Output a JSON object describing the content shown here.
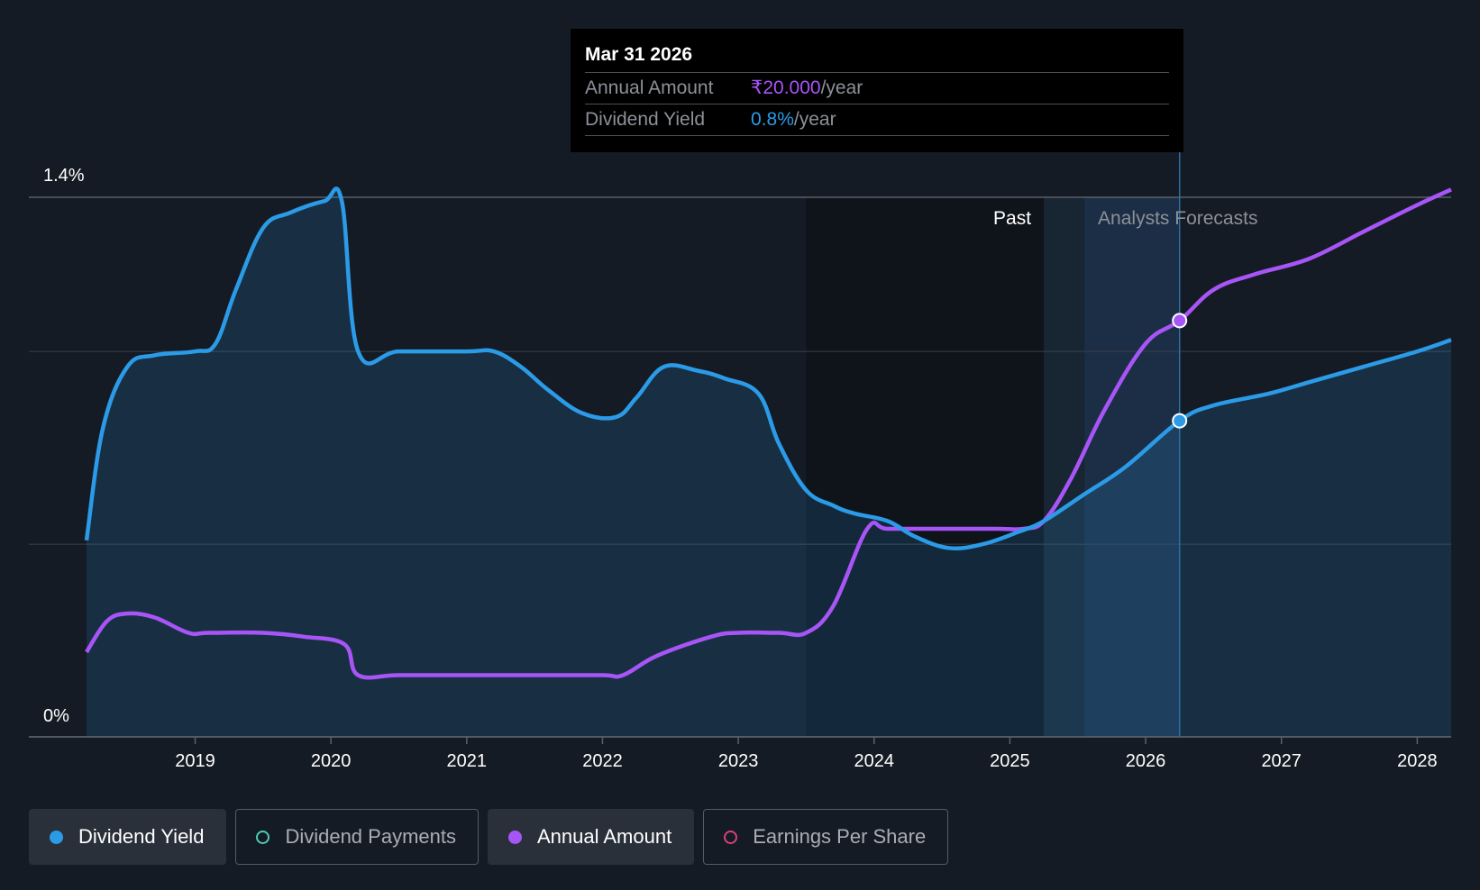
{
  "tooltip": {
    "date": "Mar 31 2026",
    "annual_amount_label": "Annual Amount",
    "annual_amount_value": "₹20.000",
    "annual_amount_unit": "/year",
    "dividend_yield_label": "Dividend Yield",
    "dividend_yield_value": "0.8%",
    "dividend_yield_unit": "/year"
  },
  "legend": [
    {
      "label": "Dividend Yield",
      "color": "#2b9be8",
      "active": true,
      "icon": "filled-dot-icon"
    },
    {
      "label": "Dividend Payments",
      "color": "#4fc9b7",
      "active": false,
      "icon": "hollow-dot-icon"
    },
    {
      "label": "Annual Amount",
      "color": "#a855f7",
      "active": true,
      "icon": "filled-dot-icon"
    },
    {
      "label": "Earnings Per Share",
      "color": "#d6417c",
      "active": false,
      "icon": "hollow-dot-icon"
    }
  ],
  "colors": {
    "background": "#151b24",
    "past_region": "#0e1219",
    "yield_line": "#2b9be8",
    "amount_line": "#a855f7",
    "grid": "#3a404a"
  },
  "chart_data": {
    "type": "line",
    "ylabel_ticks": [
      "0%",
      "1.4%"
    ],
    "ylim": [
      0,
      1.4
    ],
    "x_ticks": [
      2019,
      2020,
      2021,
      2022,
      2023,
      2024,
      2025,
      2026,
      2027,
      2028
    ],
    "xlim": [
      2018.2,
      2028.25
    ],
    "region_labels": {
      "past": "Past",
      "forecast": "Analysts Forecasts"
    },
    "past_end": 2025.25,
    "cursor_x": 2026.25,
    "series": [
      {
        "name": "Dividend Yield",
        "unit": "%",
        "points": [
          [
            2018.2,
            0.51
          ],
          [
            2018.32,
            0.8
          ],
          [
            2018.5,
            0.96
          ],
          [
            2018.7,
            0.99
          ],
          [
            2019.0,
            1.0
          ],
          [
            2019.15,
            1.02
          ],
          [
            2019.3,
            1.16
          ],
          [
            2019.5,
            1.32
          ],
          [
            2019.7,
            1.36
          ],
          [
            2019.95,
            1.39
          ],
          [
            2020.08,
            1.39
          ],
          [
            2020.2,
            1.0
          ],
          [
            2020.5,
            1.0
          ],
          [
            2021.0,
            1.0
          ],
          [
            2021.2,
            1.0
          ],
          [
            2021.4,
            0.96
          ],
          [
            2021.6,
            0.9
          ],
          [
            2021.85,
            0.84
          ],
          [
            2022.1,
            0.83
          ],
          [
            2022.25,
            0.88
          ],
          [
            2022.45,
            0.96
          ],
          [
            2022.7,
            0.95
          ],
          [
            2022.9,
            0.93
          ],
          [
            2023.15,
            0.89
          ],
          [
            2023.3,
            0.76
          ],
          [
            2023.5,
            0.64
          ],
          [
            2023.7,
            0.6
          ],
          [
            2023.85,
            0.58
          ],
          [
            2024.1,
            0.56
          ],
          [
            2024.3,
            0.52
          ],
          [
            2024.55,
            0.49
          ],
          [
            2024.8,
            0.5
          ],
          [
            2025.05,
            0.53
          ],
          [
            2025.25,
            0.56
          ],
          [
            2025.55,
            0.63
          ],
          [
            2025.85,
            0.7
          ],
          [
            2026.25,
            0.82
          ],
          [
            2026.5,
            0.86
          ],
          [
            2026.9,
            0.89
          ],
          [
            2027.2,
            0.92
          ],
          [
            2027.6,
            0.96
          ],
          [
            2028.0,
            1.0
          ],
          [
            2028.25,
            1.03
          ]
        ]
      },
      {
        "name": "Annual Amount",
        "unit": "₹",
        "points": [
          [
            2018.2,
            0.22
          ],
          [
            2018.35,
            0.3
          ],
          [
            2018.5,
            0.32
          ],
          [
            2018.7,
            0.31
          ],
          [
            2018.95,
            0.27
          ],
          [
            2019.1,
            0.27
          ],
          [
            2019.5,
            0.27
          ],
          [
            2019.8,
            0.26
          ],
          [
            2020.1,
            0.24
          ],
          [
            2020.2,
            0.16
          ],
          [
            2020.5,
            0.16
          ],
          [
            2021.0,
            0.16
          ],
          [
            2021.5,
            0.16
          ],
          [
            2022.0,
            0.16
          ],
          [
            2022.15,
            0.16
          ],
          [
            2022.4,
            0.21
          ],
          [
            2022.8,
            0.26
          ],
          [
            2023.0,
            0.27
          ],
          [
            2023.3,
            0.27
          ],
          [
            2023.5,
            0.27
          ],
          [
            2023.7,
            0.34
          ],
          [
            2023.95,
            0.54
          ],
          [
            2024.1,
            0.54
          ],
          [
            2024.5,
            0.54
          ],
          [
            2024.9,
            0.54
          ],
          [
            2025.1,
            0.54
          ],
          [
            2025.25,
            0.56
          ],
          [
            2025.45,
            0.67
          ],
          [
            2025.7,
            0.85
          ],
          [
            2026.0,
            1.02
          ],
          [
            2026.25,
            1.08
          ],
          [
            2026.5,
            1.16
          ],
          [
            2026.8,
            1.2
          ],
          [
            2027.2,
            1.24
          ],
          [
            2027.6,
            1.31
          ],
          [
            2028.0,
            1.38
          ],
          [
            2028.25,
            1.42
          ]
        ]
      }
    ],
    "highlight_points": [
      {
        "series": "Dividend Yield",
        "x": 2026.25,
        "y": 0.82
      },
      {
        "series": "Annual Amount",
        "x": 2026.25,
        "y": 1.08
      }
    ]
  }
}
